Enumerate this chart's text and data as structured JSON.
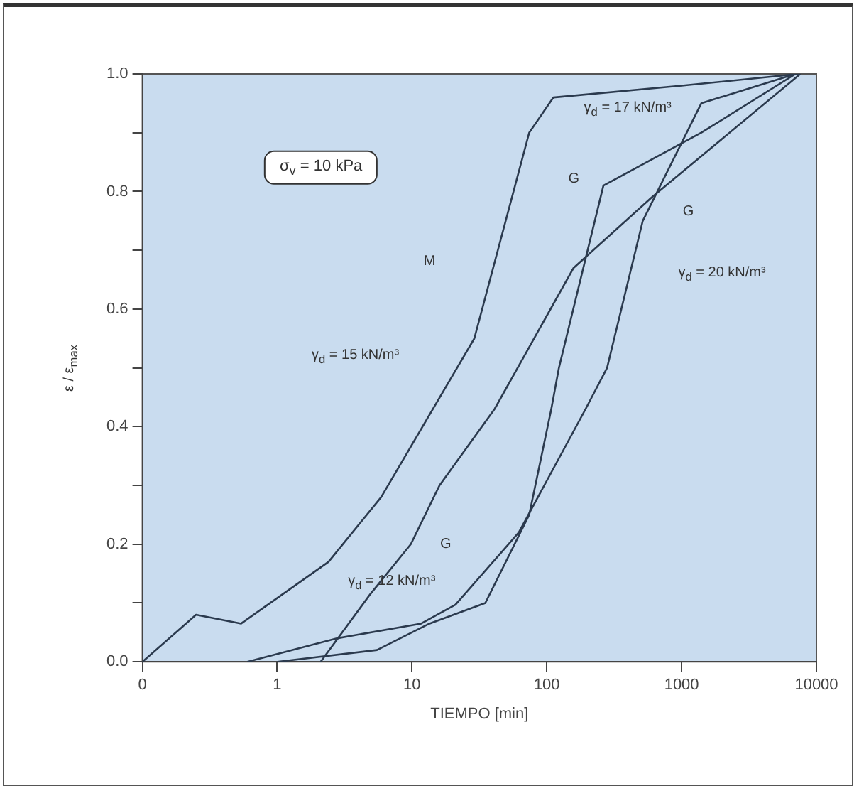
{
  "chart_data": {
    "type": "line",
    "xlabel": "TIEMPO [min]",
    "ylabel": "ε / ε$_{max}$",
    "log": "x",
    "xlim": [
      0.1,
      10000
    ],
    "xticks": [
      {
        "value": 0.1,
        "label": "0"
      },
      1,
      10,
      100,
      1000,
      10000
    ],
    "ylim": [
      0,
      1
    ],
    "yticks": [
      {
        "value": 0,
        "label": "0.0"
      },
      {
        "value": 0.1,
        "label": null
      },
      0.2,
      {
        "value": 0.3,
        "label": null
      },
      0.4,
      {
        "value": 0.5,
        "label": null
      },
      0.6,
      {
        "value": 0.7,
        "label": null
      },
      0.8,
      {
        "value": 0.9,
        "label": null
      },
      {
        "value": 1,
        "label": "1.0"
      }
    ],
    "grid": false,
    "legend": false,
    "marker": "none",
    "line_style": "solid",
    "series": [
      {
        "color": "#2b3a4e",
        "x": [
          0.1,
          0.25,
          0.54,
          2.4,
          5.9,
          29,
          74,
          112,
          1000,
          7400
        ],
        "values": [
          0,
          0.08,
          0.065,
          0.17,
          0.28,
          0.55,
          0.9,
          0.96,
          0.98,
          1.0
        ]
      },
      {
        "color": "#2b3a4e",
        "x": [
          2.1,
          4.9,
          9.8,
          16,
          41,
          158,
          600,
          7600
        ],
        "values": [
          0,
          0.115,
          0.2,
          0.3,
          0.43,
          0.67,
          0.79,
          1.0
        ]
      },
      {
        "color": "#2b3a4e",
        "x": [
          0.6,
          2.8,
          11.7,
          21,
          62,
          194,
          280,
          515,
          1400,
          7000
        ],
        "values": [
          0,
          0.04,
          0.065,
          0.097,
          0.22,
          0.43,
          0.5,
          0.75,
          0.95,
          1.0
        ]
      },
      {
        "color": "#2b3a4e",
        "x": [
          1,
          5.5,
          13.5,
          35,
          74,
          108,
          123,
          263,
          1400,
          7000
        ],
        "values": [
          0,
          0.02,
          0.065,
          0.1,
          0.25,
          0.43,
          0.5,
          0.81,
          0.9,
          1.0
        ]
      }
    ],
    "annotations": [
      "σ$_{v}$ = 10 kPa",
      "M",
      "γ$_{d}$ = 15 kN/m³",
      "γ$_{d}$ = 17 kN/m³",
      "G",
      "G",
      "γ$_{d}$ = 20 kN/m³",
      "G",
      "γ$_{d}$ = 12 kN/m³"
    ]
  }
}
